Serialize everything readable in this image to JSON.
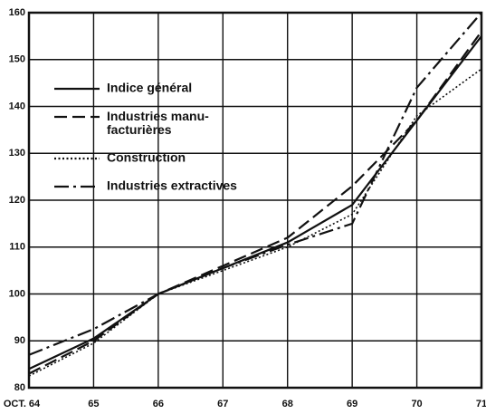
{
  "chart_data": {
    "type": "line",
    "categories": [
      "OCT. 64",
      "65",
      "66",
      "67",
      "68",
      "69",
      "70",
      "71"
    ],
    "series": [
      {
        "name": "Indice général",
        "color": "#111111",
        "dash": "solid",
        "values": [
          84,
          90.5,
          100,
          105.5,
          111,
          119,
          137,
          155
        ]
      },
      {
        "name": "Industries manu-\nfacturières",
        "color": "#111111",
        "dash": "dashed",
        "values": [
          83,
          90,
          100,
          106,
          112,
          123,
          137,
          156
        ]
      },
      {
        "name": "Construction",
        "color": "#111111",
        "dash": "dotted",
        "values": [
          82.5,
          89.5,
          100,
          105,
          110,
          117,
          138,
          148
        ]
      },
      {
        "name": "Industries extractives",
        "color": "#111111",
        "dash": "dashdot",
        "values": [
          87,
          92.5,
          100,
          105.5,
          110.5,
          115,
          144,
          160
        ]
      }
    ],
    "ylim": [
      80,
      160
    ],
    "yticks": [
      80,
      90,
      100,
      110,
      120,
      130,
      140,
      150,
      160
    ],
    "grid": true,
    "legend": "upper left"
  }
}
